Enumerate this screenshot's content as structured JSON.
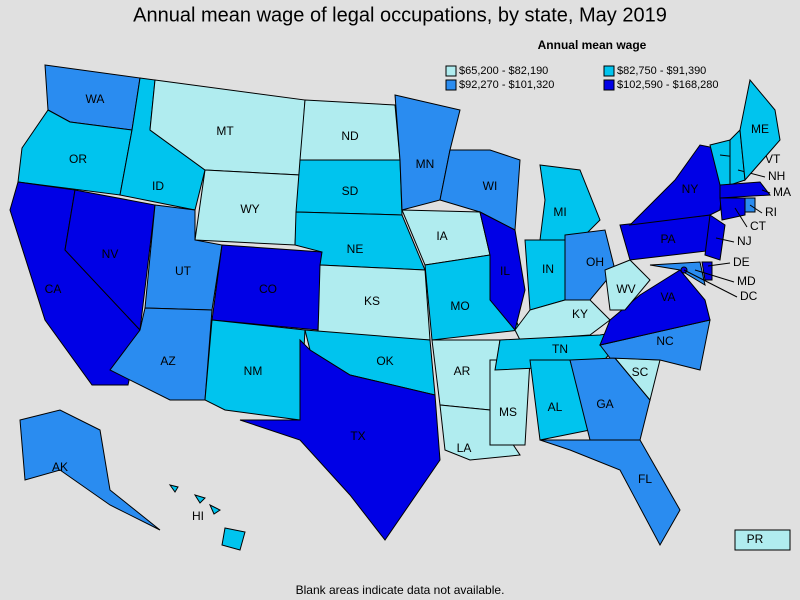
{
  "title": "Annual mean wage of legal occupations, by state, May 2019",
  "legend": {
    "title": "Annual mean wage",
    "items": [
      {
        "label": "$65,200 - $82,190",
        "color": "#b0ecef"
      },
      {
        "label": "$82,750 - $91,390",
        "color": "#00c4ee"
      },
      {
        "label": "$92,270 - $101,320",
        "color": "#2a8cf0"
      },
      {
        "label": "$102,590 - $168,280",
        "color": "#0000e6"
      }
    ]
  },
  "states": [
    {
      "label": "WA",
      "class": 2
    },
    {
      "label": "OR",
      "class": 1
    },
    {
      "label": "CA",
      "class": 3
    },
    {
      "label": "NV",
      "class": 3
    },
    {
      "label": "ID",
      "class": 1
    },
    {
      "label": "MT",
      "class": 0
    },
    {
      "label": "WY",
      "class": 0
    },
    {
      "label": "UT",
      "class": 2
    },
    {
      "label": "AZ",
      "class": 2
    },
    {
      "label": "CO",
      "class": 3
    },
    {
      "label": "NM",
      "class": 1
    },
    {
      "label": "ND",
      "class": 0
    },
    {
      "label": "SD",
      "class": 1
    },
    {
      "label": "NE",
      "class": 1
    },
    {
      "label": "KS",
      "class": 0
    },
    {
      "label": "OK",
      "class": 1
    },
    {
      "label": "TX",
      "class": 3
    },
    {
      "label": "MN",
      "class": 2
    },
    {
      "label": "IA",
      "class": 0
    },
    {
      "label": "MO",
      "class": 1
    },
    {
      "label": "AR",
      "class": 0
    },
    {
      "label": "LA",
      "class": 0
    },
    {
      "label": "MS",
      "class": 0
    },
    {
      "label": "WI",
      "class": 2
    },
    {
      "label": "IL",
      "class": 3
    },
    {
      "label": "MI",
      "class": 1
    },
    {
      "label": "IN",
      "class": 1
    },
    {
      "label": "OH",
      "class": 2
    },
    {
      "label": "KY",
      "class": 0
    },
    {
      "label": "TN",
      "class": 1
    },
    {
      "label": "AL",
      "class": 1
    },
    {
      "label": "GA",
      "class": 2
    },
    {
      "label": "FL",
      "class": 2
    },
    {
      "label": "SC",
      "class": 0
    },
    {
      "label": "NC",
      "class": 2
    },
    {
      "label": "VA",
      "class": 3
    },
    {
      "label": "WV",
      "class": 0
    },
    {
      "label": "PA",
      "class": 3
    },
    {
      "label": "NY",
      "class": 3
    },
    {
      "label": "NJ",
      "class": 3
    },
    {
      "label": "DE",
      "class": 3
    },
    {
      "label": "MD",
      "class": 2
    },
    {
      "label": "DC",
      "class": 3
    },
    {
      "label": "VT",
      "class": 1
    },
    {
      "label": "NH",
      "class": 1
    },
    {
      "label": "ME",
      "class": 1
    },
    {
      "label": "MA",
      "class": 3
    },
    {
      "label": "CT",
      "class": 3
    },
    {
      "label": "RI",
      "class": 2
    },
    {
      "label": "AK",
      "class": 2
    },
    {
      "label": "HI",
      "class": 1
    },
    {
      "label": "PR",
      "class": 0
    }
  ],
  "note": "Blank areas indicate data not available."
}
